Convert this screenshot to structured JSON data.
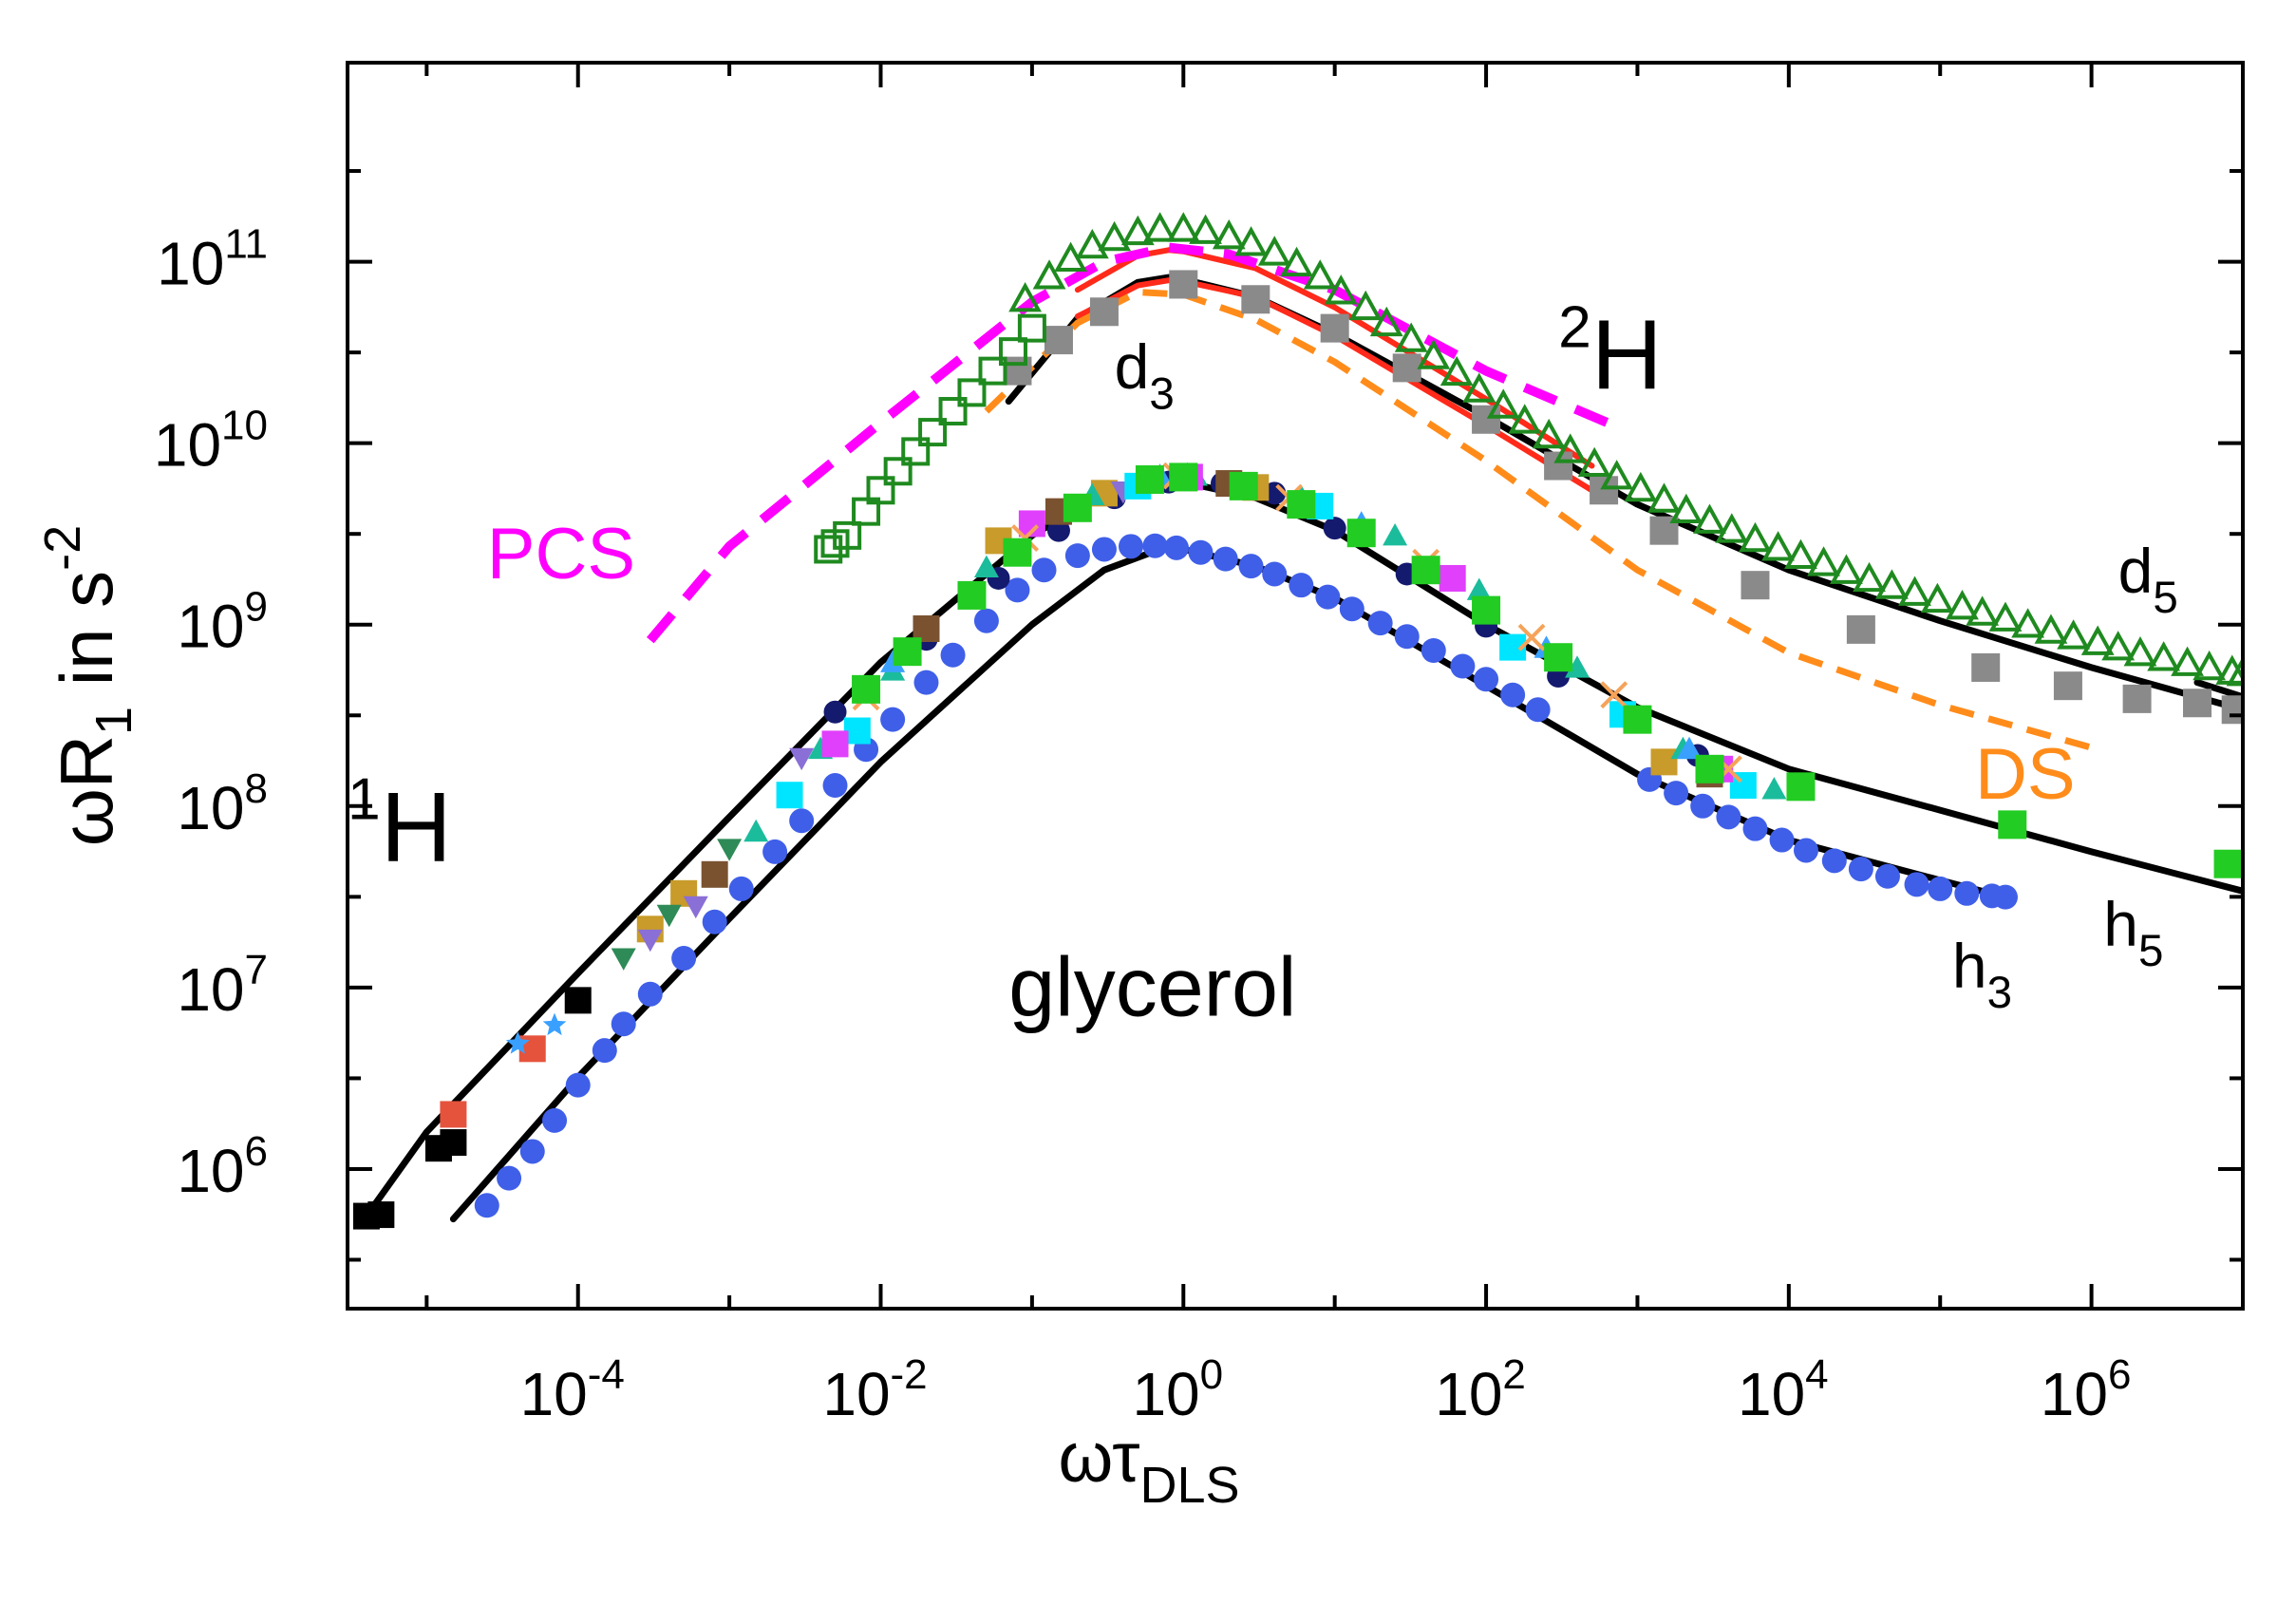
{
  "chart_data": {
    "type": "scatter",
    "xscale": "log",
    "yscale": "log",
    "xlim": [
      3e-06,
      10000000.0
    ],
    "ylim": [
      170000.0,
      1250000000000.0
    ],
    "x_ticks": [
      {
        "exp": "-4",
        "value": 0.0001
      },
      {
        "exp": "-2",
        "value": 0.01
      },
      {
        "exp": "0",
        "value": 1
      },
      {
        "exp": "2",
        "value": 100
      },
      {
        "exp": "4",
        "value": 10000
      },
      {
        "exp": "6",
        "value": 1000000
      }
    ],
    "y_ticks": [
      {
        "exp": "6",
        "value": 1000000
      },
      {
        "exp": "7",
        "value": 10000000
      },
      {
        "exp": "8",
        "value": 100000000
      },
      {
        "exp": "9",
        "value": 1000000000
      },
      {
        "exp": "10",
        "value": 10000000000
      },
      {
        "exp": "11",
        "value": 100000000000
      }
    ],
    "xlabel": {
      "main": "ωτ",
      "sub": "DLS"
    },
    "ylabel": {
      "main": "ωR",
      "sub": "1",
      "mid": " in s",
      "sup": "-2"
    },
    "grid": false,
    "colors": {
      "black": "#000000",
      "blue": "#3f5fe8",
      "navy": "#141a6e",
      "green": "#22cc22",
      "dark_green": "#1f8a1f",
      "gray": "#8a8a8a",
      "red": "#ff2a1a",
      "magenta": "#ff00ff",
      "orange": "#ff8c1a",
      "cyan": "#00e5ff",
      "teal": "#1abc9c",
      "brown": "#7a5230",
      "gold": "#c89b2a",
      "pink": "#e75480",
      "violet": "#8a6fd6",
      "salmon": "#e5533d",
      "peach": "#f5a35a",
      "sky": "#3aa0ff"
    },
    "annotations": {
      "h1": {
        "sup": "1",
        "text": "H",
        "x": 3e-06,
        "y": 50000000.0
      },
      "h2": {
        "sup": "2",
        "text": "H",
        "x": 300,
        "y": 20000000000.0
      },
      "d3": {
        "text": "d",
        "sub": "3",
        "x": 0.35,
        "y": 20000000000.0
      },
      "d5": {
        "text": "d",
        "sub": "5",
        "x": 1500000.0,
        "y": 1500000000.0
      },
      "h3": {
        "text": "h",
        "sub": "3",
        "x": 120000.0,
        "y": 10000000.0
      },
      "h5": {
        "text": "h",
        "sub": "5",
        "x": 1200000.0,
        "y": 17000000.0
      },
      "glycerol": {
        "text": "glycerol",
        "x": 0.07,
        "y": 7000000.0
      },
      "pcs": {
        "text": "PCS",
        "x": 2.5e-05,
        "y": 1800000000.0
      },
      "ds": {
        "text": "DS",
        "x": 170000.0,
        "y": 110000000.0
      }
    },
    "series": [
      {
        "kind": "curve",
        "style": "fit-black",
        "color": "#000000",
        "x": [
          4e-06,
          1e-05,
          0.0001,
          0.001,
          0.01,
          0.1,
          0.3,
          0.7,
          1,
          3,
          10,
          100,
          1000,
          10000,
          100000,
          1000000,
          10000000
        ],
        "y": [
          550000.0,
          1600000.0,
          12000000.0,
          87000000.0,
          620000000.0,
          3100000000.0,
          5300000000.0,
          6200000000.0,
          6100000000.0,
          5000000000.0,
          3300000000.0,
          1000000000.0,
          350000000.0,
          160000000.0,
          95000000.0,
          56000000.0,
          34000000.0
        ]
      },
      {
        "kind": "curve",
        "style": "fit-black",
        "color": "#000000",
        "x": [
          1.5e-05,
          0.0001,
          0.001,
          0.01,
          0.1,
          0.3,
          0.7,
          1,
          3,
          10,
          100,
          1000,
          10000,
          100000,
          250000
        ],
        "y": [
          530000.0,
          3200000.0,
          24000000.0,
          175000000.0,
          1000000000.0,
          2000000000.0,
          2600000000.0,
          2600000000.0,
          2100000000.0,
          1400000000.0,
          460000000.0,
          150000000.0,
          65000000.0,
          39000000.0,
          32000000.0
        ]
      },
      {
        "kind": "curve",
        "style": "fit-black",
        "color": "#000000",
        "x": [
          0.07,
          0.2,
          0.5,
          0.8,
          1,
          3,
          10,
          100,
          1000,
          10000,
          100000,
          1000000,
          10000000
        ],
        "y": [
          17000000000.0,
          49000000000.0,
          77000000000.0,
          82000000000.0,
          80000000000.0,
          64000000000.0,
          40000000000.0,
          14000000000.0,
          4600000000.0,
          2000000000.0,
          1050000000.0,
          580000000.0,
          340000000.0
        ]
      },
      {
        "kind": "curve",
        "style": "fit-black",
        "color": "#000000",
        "x": [
          5000000.0,
          10000000.0
        ],
        "y": [
          480000000.0,
          400000000.0
        ]
      },
      {
        "kind": "curve",
        "style": "fit-red",
        "color": "#ff2a1a",
        "x": [
          0.2,
          0.5,
          0.8,
          1,
          3,
          10,
          100,
          500
        ],
        "y": [
          50000000000.0,
          74000000000.0,
          79000000000.0,
          78000000000.0,
          64000000000.0,
          39000000000.0,
          12500000000.0,
          5500000000.0
        ]
      },
      {
        "kind": "curve",
        "style": "fit-red",
        "color": "#ff2a1a",
        "x": [
          0.2,
          0.5,
          0.8,
          1,
          3,
          10,
          100,
          500
        ],
        "y": [
          70000000000.0,
          108000000000.0,
          116000000000.0,
          114000000000.0,
          92000000000.0,
          56000000000.0,
          17500000000.0,
          7500000000.0
        ]
      },
      {
        "kind": "curve",
        "style": "dash-magenta",
        "color": "#ff00ff",
        "x": [
          0.0003,
          0.001,
          0.003,
          0.01,
          0.03,
          0.1,
          0.3,
          0.8,
          2,
          10,
          100,
          700
        ],
        "y": [
          820000000.0,
          2700000000.0,
          5700000000.0,
          13000000000.0,
          27000000000.0,
          60000000000.0,
          100000000000.0,
          120000000000.0,
          110000000000.0,
          70000000000.0,
          25000000000.0,
          12500000000.0
        ]
      },
      {
        "kind": "curve",
        "style": "dash-orange",
        "color": "#ff8c1a",
        "x": [
          0.05,
          0.2,
          0.5,
          1,
          3,
          10,
          100,
          1000,
          10000,
          100000,
          1000000
        ],
        "y": [
          15000000000.0,
          46000000000.0,
          68000000000.0,
          66000000000.0,
          48000000000.0,
          28000000000.0,
          8000000000.0,
          2000000000.0,
          700000000.0,
          360000000.0,
          210000000.0
        ]
      },
      {
        "kind": "markers",
        "marker": "circle",
        "color": "#3f5fe8",
        "size": 26,
        "x": [
          2.5e-05,
          3.5e-05,
          5e-05,
          7e-05,
          0.0001,
          0.00015,
          0.0002,
          0.0003,
          0.0005,
          0.0008,
          0.0012,
          0.002,
          0.003,
          0.005,
          0.008,
          0.012,
          0.02,
          0.03,
          0.05,
          0.08,
          0.12,
          0.2,
          0.3,
          0.45,
          0.65,
          0.9,
          1.3,
          1.9,
          2.8,
          4,
          6,
          9,
          13,
          20,
          30,
          45,
          70,
          100,
          150,
          220,
          1200,
          1800,
          2700,
          4000,
          6000,
          9000,
          13000,
          20000,
          30000,
          45000,
          70000,
          100000,
          150000,
          220000,
          270000
        ],
        "y": [
          630000.0,
          890000.0,
          1250000.0,
          1850000.0,
          2900000.0,
          4500000.0,
          6300000.0,
          9200000.0,
          14500000.0,
          23000000.0,
          35000000.0,
          56000000.0,
          83000000.0,
          130000000.0,
          205000000.0,
          300000000.0,
          480000000.0,
          680000000.0,
          1050000000.0,
          1550000000.0,
          2000000000.0,
          2400000000.0,
          2600000000.0,
          2700000000.0,
          2720000000.0,
          2650000000.0,
          2500000000.0,
          2300000000.0,
          2100000000.0,
          1900000000.0,
          1650000000.0,
          1420000000.0,
          1220000000.0,
          1020000000.0,
          860000000.0,
          720000000.0,
          590000000.0,
          500000000.0,
          410000000.0,
          340000000.0,
          140000000.0,
          118000000.0,
          100000000.0,
          87000000.0,
          75000000.0,
          65000000.0,
          57000000.0,
          50000000.0,
          45000000.0,
          41000000.0,
          37000000.0,
          35000000.0,
          33000000.0,
          32000000.0,
          31500000.0
        ]
      },
      {
        "kind": "markers",
        "marker": "circle",
        "color": "#141a6e",
        "size": 24,
        "x": [
          0.005,
          0.02,
          0.06,
          0.15,
          0.35,
          0.8,
          1.8,
          4,
          10,
          30,
          100,
          300,
          1000,
          2500
        ],
        "y": [
          330000000.0,
          830000000.0,
          1800000000.0,
          3300000000.0,
          5000000000.0,
          6100000000.0,
          6000000000.0,
          5300000000.0,
          3400000000.0,
          1900000000.0,
          980000000.0,
          520000000.0,
          300000000.0,
          190000000.0
        ]
      },
      {
        "kind": "markers",
        "marker": "square",
        "color": "#000000",
        "size": 28,
        "x": [
          4e-06,
          5e-06,
          1.2e-05,
          1.5e-05,
          0.0001
        ],
        "y": [
          550000.0,
          560000.0,
          1300000.0,
          1400000.0,
          8500000.0
        ]
      },
      {
        "kind": "markers",
        "marker": "square",
        "color": "#e5533d",
        "size": 28,
        "x": [
          1.5e-05,
          5e-05
        ],
        "y": [
          2000000.0,
          4600000.0
        ]
      },
      {
        "kind": "markers",
        "marker": "star",
        "color": "#3aa0ff",
        "size": 26,
        "x": [
          4e-05,
          7e-05
        ],
        "y": [
          4900000.0,
          6200000.0
        ]
      },
      {
        "kind": "markers",
        "marker": "square",
        "color": "#c89b2a",
        "size": 28,
        "x": [
          0.0003,
          0.0005,
          0.06,
          0.3,
          3,
          1500
        ],
        "y": [
          21000000.0,
          33000000.0,
          2900000000.0,
          5300000000.0,
          5700000000.0,
          175000000.0
        ]
      },
      {
        "kind": "markers",
        "marker": "square",
        "color": "#7a5230",
        "size": 28,
        "x": [
          0.0008,
          0.02,
          0.15,
          2,
          3000
        ],
        "y": [
          42000000.0,
          950000000.0,
          4200000000.0,
          6000000000.0,
          150000000.0
        ]
      },
      {
        "kind": "markers",
        "marker": "triangle-down",
        "color": "#2e8b57",
        "size": 26,
        "x": [
          0.0002,
          0.0004,
          0.001,
          0.008
        ],
        "y": [
          15000000.0,
          26000000.0,
          60000000.0,
          470000000.0
        ]
      },
      {
        "kind": "markers",
        "marker": "triangle-down",
        "color": "#8a6fd6",
        "size": 26,
        "x": [
          0.0003,
          0.0006,
          0.003,
          0.4
        ],
        "y": [
          19000000.0,
          29000000.0,
          190000000.0,
          5600000000.0
        ]
      },
      {
        "kind": "markers",
        "marker": "triangle",
        "color": "#1abc9c",
        "size": 26,
        "x": [
          0.0015,
          0.004,
          0.012,
          0.05,
          0.25,
          1.2,
          6,
          25,
          90,
          400,
          2000,
          8000
        ],
        "y": [
          70000000.0,
          200000000.0,
          540000000.0,
          2000000000.0,
          5000000000.0,
          6400000000.0,
          4900000000.0,
          3000000000.0,
          1500000000.0,
          560000000.0,
          200000000.0,
          120000000.0
        ]
      },
      {
        "kind": "markers",
        "marker": "square",
        "color": "#00e5ff",
        "size": 28,
        "x": [
          0.0025,
          0.007,
          0.5,
          8,
          150,
          800,
          5000
        ],
        "y": [
          115000000.0,
          260000000.0,
          5800000000.0,
          4500000000.0,
          750000000.0,
          320000000.0,
          130000000.0
        ]
      },
      {
        "kind": "markers",
        "marker": "square",
        "color": "#e040fb",
        "size": 28,
        "x": [
          0.005,
          0.1,
          1.1,
          60,
          3500
        ],
        "y": [
          220000000.0,
          3600000000.0,
          6500000000.0,
          1800000000.0,
          160000000.0
        ]
      },
      {
        "kind": "markers",
        "marker": "triangle",
        "color": "#3aa0ff",
        "size": 26,
        "x": [
          0.012,
          0.7,
          15,
          250,
          2200
        ],
        "y": [
          600000000.0,
          6400000000.0,
          3500000000.0,
          720000000.0,
          200000000.0
        ]
      },
      {
        "kind": "markers",
        "marker": "cross",
        "color": "#f5a35a",
        "size": 26,
        "x": [
          0.008,
          0.09,
          0.9,
          5,
          40,
          200,
          700,
          4000
        ],
        "y": [
          400000000.0,
          3000000000.0,
          6600000000.0,
          5000000000.0,
          2200000000.0,
          850000000.0,
          410000000.0,
          160000000.0
        ]
      },
      {
        "kind": "markers",
        "marker": "square",
        "color": "#22cc22",
        "size": 30,
        "x": [
          0.008,
          0.015,
          0.04,
          0.08,
          0.2,
          0.6,
          1,
          2.5,
          6,
          15,
          40,
          100,
          300,
          1000,
          3000,
          12000,
          300000,
          8000000
        ],
        "y": [
          440000000.0,
          710000000.0,
          1450000000.0,
          2500000000.0,
          4400000000.0,
          6300000000.0,
          6500000000.0,
          5800000000.0,
          4600000000.0,
          3200000000.0,
          2000000000.0,
          1200000000.0,
          660000000.0,
          300000000.0,
          160000000.0,
          128000000.0,
          79000000.0,
          48000000.0
        ]
      },
      {
        "kind": "markers",
        "marker": "square",
        "color": "#8a8a8a",
        "size": 30,
        "x": [
          0.08,
          0.15,
          0.3,
          1,
          3,
          10,
          30,
          100,
          300,
          600,
          1500,
          6000,
          30000,
          200000,
          700000,
          2000000,
          5000000,
          9000000
        ],
        "y": [
          25000000000.0,
          37000000000.0,
          53000000000.0,
          75000000000.0,
          62000000000.0,
          43000000000.0,
          26000000000.0,
          13500000000.0,
          7500000000.0,
          5500000000.0,
          3300000000.0,
          1650000000.0,
          940000000.0,
          580000000.0,
          460000000.0,
          390000000.0,
          370000000.0,
          340000000.0
        ]
      },
      {
        "kind": "markers",
        "marker": "square-open",
        "color": "#1f8a1f",
        "size": 26,
        "x": [
          0.0045,
          0.005,
          0.006,
          0.008,
          0.01,
          0.013,
          0.017,
          0.022,
          0.03,
          0.04,
          0.055,
          0.075,
          0.1
        ],
        "y": [
          2600000000.0,
          2800000000.0,
          3100000000.0,
          4200000000.0,
          5500000000.0,
          7000000000.0,
          9000000000.0,
          11500000000.0,
          15000000000.0,
          19000000000.0,
          25000000000.0,
          32000000000.0,
          43000000000.0
        ]
      },
      {
        "kind": "markers",
        "marker": "triangle-open",
        "color": "#1f8a1f",
        "size": 28,
        "x": [
          0.09,
          0.13,
          0.18,
          0.25,
          0.35,
          0.5,
          0.7,
          1,
          1.4,
          2,
          2.8,
          4,
          5.6,
          8,
          11,
          16,
          22,
          32,
          45,
          64,
          90,
          130,
          180,
          260,
          360,
          520,
          730,
          1050,
          1500,
          2100,
          3000,
          4200,
          6000,
          8500,
          12000,
          17000,
          24000,
          34000,
          48000,
          68000,
          96000,
          140000,
          190000,
          270000,
          380000,
          540000,
          760000,
          1100000,
          1500000,
          2100000,
          3000000,
          4300000,
          6000000,
          8500000,
          10000000
        ],
        "y": [
          60000000000.0,
          80000000000.0,
          100000000000.0,
          118000000000.0,
          130000000000.0,
          140000000000.0,
          146000000000.0,
          146000000000.0,
          142000000000.0,
          133000000000.0,
          122000000000.0,
          108000000000.0,
          94000000000.0,
          80000000000.0,
          66000000000.0,
          54000000000.0,
          44000000000.0,
          36000000000.0,
          29000000000.0,
          23500000000.0,
          19000000000.0,
          15500000000.0,
          12800000000.0,
          10600000000.0,
          8800000000.0,
          7400000000.0,
          6300000000.0,
          5400000000.0,
          4700000000.0,
          4100000000.0,
          3600000000.0,
          3200000000.0,
          2850000000.0,
          2550000000.0,
          2300000000.0,
          2100000000.0,
          1900000000.0,
          1720000000.0,
          1570000000.0,
          1440000000.0,
          1320000000.0,
          1210000000.0,
          1120000000.0,
          1040000000.0,
          960000000.0,
          890000000.0,
          830000000.0,
          770000000.0,
          720000000.0,
          670000000.0,
          630000000.0,
          590000000.0,
          560000000.0,
          530000000.0,
          520000000.0
        ]
      }
    ]
  }
}
